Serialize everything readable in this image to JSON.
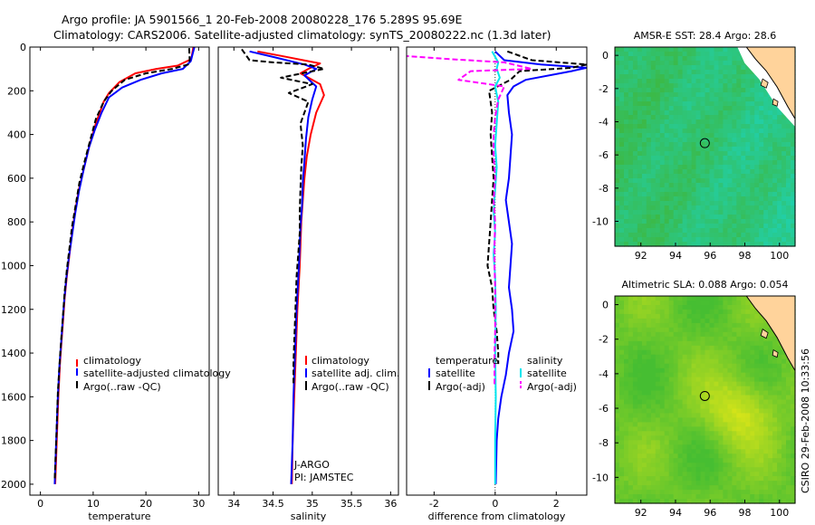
{
  "title_line1": "Argo profile: JA 5901566_1 20-Feb-2008 20080228_176 5.289S 95.69E",
  "title_line2": "Climatology: CARS2006. Satellite-adjusted climatology: synTS_20080222.nc (1.3d later)",
  "side_stamp": "CSIRO 29-Feb-2008 10:33:56",
  "colors": {
    "climatology": "#ff0000",
    "satellite": "#0000ff",
    "argo": "#000000",
    "sal_satellite": "#00e5ee",
    "sal_argo": "#ff00ff"
  },
  "chart_data": [
    {
      "type": "line",
      "name": "temperature-profile",
      "xlabel": "temperature",
      "xlim": [
        -2,
        32
      ],
      "ylim": [
        0,
        2050
      ],
      "xticks": [
        0,
        10,
        20,
        30
      ],
      "yticks": [
        0,
        200,
        400,
        600,
        800,
        1000,
        1200,
        1400,
        1600,
        1800,
        2000
      ],
      "legend": [
        "climatology",
        "satellite-adjusted climatology",
        "Argo(..raw -QC)"
      ],
      "series": [
        {
          "name": "climatology",
          "color": "#ff0000",
          "dash": "",
          "points": [
            [
              29,
              0
            ],
            [
              28.6,
              55
            ],
            [
              26,
              85
            ],
            [
              22,
              100
            ],
            [
              18,
              120
            ],
            [
              15,
              160
            ],
            [
              13,
              210
            ],
            [
              12,
              250
            ],
            [
              10.5,
              350
            ],
            [
              9.3,
              450
            ],
            [
              8.3,
              550
            ],
            [
              7.3,
              650
            ],
            [
              6.6,
              750
            ],
            [
              6.0,
              850
            ],
            [
              5.5,
              950
            ],
            [
              5.0,
              1050
            ],
            [
              4.6,
              1150
            ],
            [
              4.3,
              1250
            ],
            [
              4.0,
              1350
            ],
            [
              3.7,
              1450
            ],
            [
              3.4,
              1600
            ],
            [
              3.1,
              1800
            ],
            [
              2.8,
              2000
            ]
          ]
        },
        {
          "name": "satellite-adjusted climatology",
          "color": "#0000ff",
          "dash": "",
          "points": [
            [
              29.2,
              0
            ],
            [
              28.5,
              65
            ],
            [
              27,
              100
            ],
            [
              23,
              120
            ],
            [
              19,
              150
            ],
            [
              15.5,
              185
            ],
            [
              13,
              230
            ],
            [
              11.6,
              300
            ],
            [
              10.3,
              380
            ],
            [
              9.2,
              460
            ],
            [
              8.2,
              560
            ],
            [
              7.3,
              660
            ],
            [
              6.6,
              760
            ],
            [
              6.0,
              860
            ],
            [
              5.4,
              960
            ],
            [
              4.9,
              1060
            ],
            [
              4.5,
              1160
            ],
            [
              4.2,
              1260
            ],
            [
              3.9,
              1360
            ],
            [
              3.6,
              1460
            ],
            [
              3.3,
              1600
            ],
            [
              3.0,
              1800
            ],
            [
              2.7,
              2000
            ]
          ]
        },
        {
          "name": "Argo(..raw -QC)",
          "color": "#000000",
          "dash": "6,3",
          "points": [
            [
              28.2,
              5
            ],
            [
              28.3,
              60
            ],
            [
              28,
              80
            ],
            [
              25,
              100
            ],
            [
              20,
              120
            ],
            [
              16,
              150
            ],
            [
              13.5,
              200
            ],
            [
              12,
              250
            ],
            [
              10.5,
              330
            ],
            [
              9.5,
              420
            ],
            [
              8.4,
              520
            ],
            [
              7.4,
              620
            ],
            [
              6.7,
              720
            ],
            [
              6.0,
              820
            ],
            [
              5.5,
              920
            ],
            [
              5.0,
              1020
            ],
            [
              4.6,
              1120
            ],
            [
              4.3,
              1220
            ],
            [
              4.0,
              1320
            ],
            [
              3.7,
              1420
            ],
            [
              3.3,
              1580
            ],
            [
              3.0,
              1800
            ],
            [
              2.7,
              1980
            ]
          ]
        }
      ]
    },
    {
      "type": "line",
      "name": "salinity-profile",
      "xlabel": "salinity",
      "xlim": [
        33.8,
        36.1
      ],
      "ylim": [
        0,
        2050
      ],
      "xticks": [
        34,
        34.5,
        35,
        35.5,
        36
      ],
      "yticks": [],
      "legend": [
        "climatology",
        "satellite adj. clim.",
        "Argo(..raw -QC)"
      ],
      "annotations": [
        "J-ARGO",
        "PI: JAMSTEC"
      ],
      "series": [
        {
          "name": "climatology",
          "color": "#ff0000",
          "dash": "",
          "points": [
            [
              34.3,
              20
            ],
            [
              34.6,
              40
            ],
            [
              35.1,
              75
            ],
            [
              34.95,
              100
            ],
            [
              34.85,
              120
            ],
            [
              35.1,
              170
            ],
            [
              35.15,
              220
            ],
            [
              35.05,
              300
            ],
            [
              34.98,
              400
            ],
            [
              34.93,
              500
            ],
            [
              34.9,
              600
            ],
            [
              34.88,
              700
            ],
            [
              34.86,
              800
            ],
            [
              34.84,
              1000
            ],
            [
              34.81,
              1200
            ],
            [
              34.79,
              1400
            ],
            [
              34.77,
              1600
            ],
            [
              34.75,
              1800
            ],
            [
              34.74,
              2000
            ]
          ]
        },
        {
          "name": "satellite adj. clim.",
          "color": "#0000ff",
          "dash": "",
          "points": [
            [
              34.2,
              20
            ],
            [
              34.5,
              45
            ],
            [
              34.9,
              80
            ],
            [
              35.05,
              100
            ],
            [
              34.9,
              130
            ],
            [
              35.05,
              180
            ],
            [
              35.0,
              240
            ],
            [
              34.95,
              320
            ],
            [
              34.92,
              420
            ],
            [
              34.9,
              520
            ],
            [
              34.88,
              620
            ],
            [
              34.87,
              720
            ],
            [
              34.85,
              820
            ],
            [
              34.83,
              1000
            ],
            [
              34.8,
              1200
            ],
            [
              34.78,
              1400
            ],
            [
              34.76,
              1600
            ],
            [
              34.75,
              1800
            ],
            [
              34.73,
              2000
            ]
          ]
        },
        {
          "name": "Argo(..raw -QC)",
          "color": "#000000",
          "dash": "6,3",
          "points": [
            [
              34.1,
              10
            ],
            [
              34.2,
              60
            ],
            [
              34.5,
              70
            ],
            [
              34.95,
              80
            ],
            [
              35.15,
              100
            ],
            [
              34.6,
              140
            ],
            [
              35.0,
              170
            ],
            [
              34.7,
              210
            ],
            [
              34.95,
              250
            ],
            [
              34.85,
              350
            ],
            [
              34.88,
              450
            ],
            [
              34.86,
              550
            ],
            [
              34.85,
              650
            ],
            [
              34.84,
              750
            ],
            [
              34.84,
              850
            ],
            [
              34.82,
              950
            ],
            [
              34.8,
              1050
            ],
            [
              34.79,
              1150
            ],
            [
              34.78,
              1250
            ],
            [
              34.77,
              1350
            ],
            [
              34.76,
              1450
            ],
            [
              34.76,
              1550
            ]
          ]
        }
      ]
    },
    {
      "type": "line",
      "name": "difference-profile",
      "xlabel": "difference from climatology",
      "xlim": [
        -2.9,
        3.0
      ],
      "ylim": [
        0,
        2050
      ],
      "xticks": [
        -2,
        0,
        2
      ],
      "yticks": [],
      "legend_left_title": "temperature",
      "legend_right_title": "salinity",
      "legend": [
        "satellite",
        "Argo(-adj)",
        "satellite",
        "Argo(-adj)"
      ],
      "series": [
        {
          "name": "temperature satellite",
          "color": "#0000ff",
          "dash": "",
          "points": [
            [
              0,
              20
            ],
            [
              0.3,
              60
            ],
            [
              1.5,
              80
            ],
            [
              3,
              95
            ],
            [
              2.5,
              110
            ],
            [
              1,
              150
            ],
            [
              0.6,
              180
            ],
            [
              0.4,
              220
            ],
            [
              0.45,
              300
            ],
            [
              0.55,
              400
            ],
            [
              0.5,
              500
            ],
            [
              0.45,
              600
            ],
            [
              0.35,
              700
            ],
            [
              0.45,
              800
            ],
            [
              0.55,
              900
            ],
            [
              0.5,
              1000
            ],
            [
              0.45,
              1100
            ],
            [
              0.55,
              1200
            ],
            [
              0.6,
              1300
            ],
            [
              0.45,
              1400
            ],
            [
              0.35,
              1500
            ],
            [
              0.2,
              1600
            ],
            [
              0.1,
              1700
            ],
            [
              0.05,
              1800
            ],
            [
              0.02,
              2000
            ]
          ]
        },
        {
          "name": "temperature Argo(-adj)",
          "color": "#000000",
          "dash": "6,3",
          "points": [
            [
              0.4,
              20
            ],
            [
              1.2,
              60
            ],
            [
              3,
              80
            ],
            [
              2.5,
              95
            ],
            [
              0.8,
              110
            ],
            [
              0.5,
              150
            ],
            [
              -0.2,
              200
            ],
            [
              -0.1,
              300
            ],
            [
              -0.15,
              400
            ],
            [
              -0.1,
              500
            ],
            [
              -0.05,
              600
            ],
            [
              -0.1,
              700
            ],
            [
              -0.15,
              800
            ],
            [
              -0.2,
              900
            ],
            [
              -0.25,
              1000
            ],
            [
              -0.1,
              1100
            ],
            [
              -0.05,
              1200
            ],
            [
              0.05,
              1300
            ],
            [
              0.1,
              1400
            ],
            [
              0.1,
              1450
            ]
          ]
        },
        {
          "name": "salinity satellite",
          "color": "#00e5ee",
          "dash": "",
          "points": [
            [
              -0.1,
              20
            ],
            [
              0.1,
              70
            ],
            [
              0.05,
              100
            ],
            [
              0.15,
              140
            ],
            [
              0,
              180
            ],
            [
              0.1,
              250
            ],
            [
              0.05,
              350
            ],
            [
              0,
              450
            ],
            [
              0.05,
              550
            ],
            [
              0,
              650
            ],
            [
              -0.05,
              750
            ],
            [
              0,
              850
            ],
            [
              -0.05,
              950
            ],
            [
              0,
              1050
            ],
            [
              0.02,
              1200
            ],
            [
              0,
              1400
            ],
            [
              0.02,
              1600
            ],
            [
              0,
              1800
            ],
            [
              0,
              2000
            ]
          ]
        },
        {
          "name": "salinity Argo(-adj)",
          "color": "#ff00ff",
          "dash": "6,3",
          "points": [
            [
              -3,
              40
            ],
            [
              -1.5,
              55
            ],
            [
              0.3,
              70
            ],
            [
              1.2,
              100
            ],
            [
              -0.8,
              110
            ],
            [
              -1.2,
              150
            ],
            [
              0.3,
              180
            ],
            [
              0.1,
              240
            ],
            [
              0,
              320
            ],
            [
              -0.05,
              400
            ],
            [
              -0.05,
              500
            ],
            [
              0,
              600
            ],
            [
              -0.05,
              700
            ],
            [
              0,
              800
            ],
            [
              -0.02,
              900
            ],
            [
              -0.02,
              1000
            ],
            [
              0,
              1100
            ],
            [
              0,
              1200
            ],
            [
              0,
              1300
            ],
            [
              -0.02,
              1400
            ],
            [
              -0.02,
              1550
            ]
          ]
        }
      ]
    },
    {
      "type": "heatmap",
      "name": "amsr-sst-map",
      "title": "AMSR-E SST: 28.4 Argo: 28.6",
      "xlim": [
        90.5,
        100.9
      ],
      "ylim": [
        -11.5,
        0.5
      ],
      "xticks": [
        92,
        94,
        96,
        98,
        100
      ],
      "yticks": [
        0,
        -2,
        -4,
        -6,
        -8,
        -10
      ],
      "marker": [
        95.69,
        -5.289
      ],
      "palette": "sst"
    },
    {
      "type": "heatmap",
      "name": "altimetric-sla-map",
      "title": "Altimetric SLA: 0.088 Argo: 0.054",
      "xlim": [
        90.5,
        100.9
      ],
      "ylim": [
        -11.5,
        0.5
      ],
      "xticks": [
        92,
        94,
        96,
        98,
        100
      ],
      "yticks": [
        0,
        -2,
        -4,
        -6,
        -8,
        -10
      ],
      "marker": [
        95.69,
        -5.289
      ],
      "palette": "sla"
    }
  ]
}
